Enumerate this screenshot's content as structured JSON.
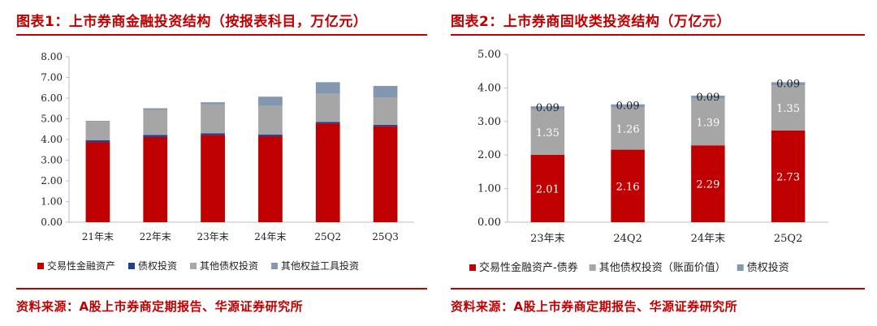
{
  "chart_data": [
    {
      "type": "bar",
      "stacked": true,
      "title": "图表1：上市券商金融投资结构（按报表科目，万亿元）",
      "categories": [
        "21年末",
        "22年末",
        "23年末",
        "24年末",
        "25Q2",
        "25Q3"
      ],
      "series": [
        {
          "name": "交易性金融资产",
          "color": "#c00000",
          "values": [
            3.88,
            4.12,
            4.22,
            4.16,
            4.78,
            4.64
          ]
        },
        {
          "name": "债权投资",
          "color": "#1f3f8f",
          "values": [
            0.08,
            0.1,
            0.08,
            0.08,
            0.07,
            0.07
          ]
        },
        {
          "name": "其他债权投资",
          "color": "#a6a6a6",
          "values": [
            0.9,
            1.21,
            1.39,
            1.38,
            1.36,
            1.33
          ]
        },
        {
          "name": "其他权益工具投资",
          "color": "#8497b0",
          "values": [
            0.04,
            0.08,
            0.11,
            0.45,
            0.56,
            0.55
          ]
        }
      ],
      "ylim": [
        0,
        8
      ],
      "yticks": [
        "0.00",
        "1.00",
        "2.00",
        "3.00",
        "4.00",
        "5.00",
        "6.00",
        "7.00",
        "8.00"
      ],
      "legend_position": "bottom",
      "grid": false,
      "source": "资料来源：A股上市券商定期报告、华源证券研究所"
    },
    {
      "type": "bar",
      "stacked": true,
      "title": "图表2：上市券商固收类投资结构（万亿元）",
      "categories": [
        "23年末",
        "24Q2",
        "24年末",
        "25Q2"
      ],
      "series": [
        {
          "name": "交易性金融资产-债券",
          "color": "#c00000",
          "values": [
            2.01,
            2.16,
            2.29,
            2.73
          ],
          "labels": [
            "2.01",
            "2.16",
            "2.29",
            "2.73"
          ]
        },
        {
          "name": "其他债权投资（账面价值）",
          "color": "#a6a6a6",
          "values": [
            1.35,
            1.26,
            1.39,
            1.35
          ],
          "labels": [
            "1.35",
            "1.26",
            "1.39",
            "1.35"
          ]
        },
        {
          "name": "债权投资",
          "color": "#8497b0",
          "values": [
            0.09,
            0.09,
            0.09,
            0.09
          ],
          "labels": [
            "0.09",
            "0.09",
            "0.09",
            "0.09"
          ]
        }
      ],
      "ylim": [
        0,
        5
      ],
      "yticks": [
        "0.00",
        "1.00",
        "2.00",
        "3.00",
        "4.00",
        "5.00"
      ],
      "legend_position": "bottom",
      "grid": false,
      "source": "资料来源：A股上市券商定期报告、华源证券研究所"
    }
  ]
}
